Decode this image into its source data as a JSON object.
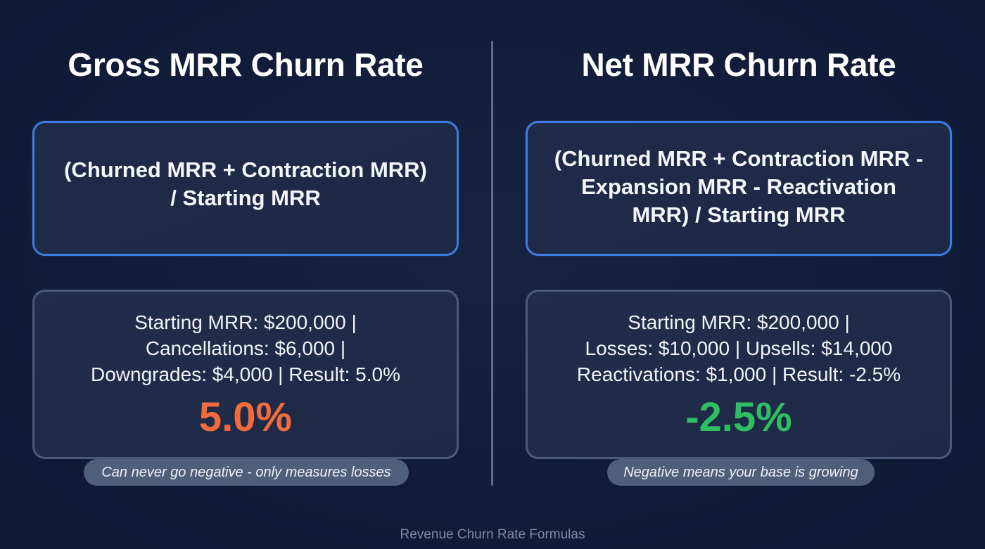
{
  "colors": {
    "background": "#111c38",
    "formula_border": "#3d7be0",
    "example_border": "#4a5a78",
    "gross_result": "#f26b3a",
    "net_result": "#2fbf63",
    "note_pill": "#4f5f7a",
    "caption": "#7c8aa5"
  },
  "gross": {
    "title": "Gross MRR Churn Rate",
    "formula_lines": [
      "(Churned MRR + Contraction MRR)",
      "/ Starting MRR"
    ],
    "example_lines": [
      "Starting MRR: $200,000 |",
      "Cancellations: $6,000 |",
      "Downgrades: $4,000 | Result: 5.0%"
    ],
    "result": "5.0%",
    "note": "Can never go negative - only measures losses"
  },
  "net": {
    "title": "Net MRR Churn Rate",
    "formula_lines": [
      "(Churned MRR + Contraction MRR -",
      "Expansion MRR - Reactivation",
      "MRR) / Starting MRR"
    ],
    "example_lines": [
      "Starting MRR: $200,000 |",
      "Losses: $10,000 | Upsells: $14,000",
      "Reactivations: $1,000 | Result: -2.5%"
    ],
    "result": "-2.5%",
    "note": "Negative means your base is growing"
  },
  "footer": {
    "caption": "Revenue Churn Rate Formulas"
  }
}
